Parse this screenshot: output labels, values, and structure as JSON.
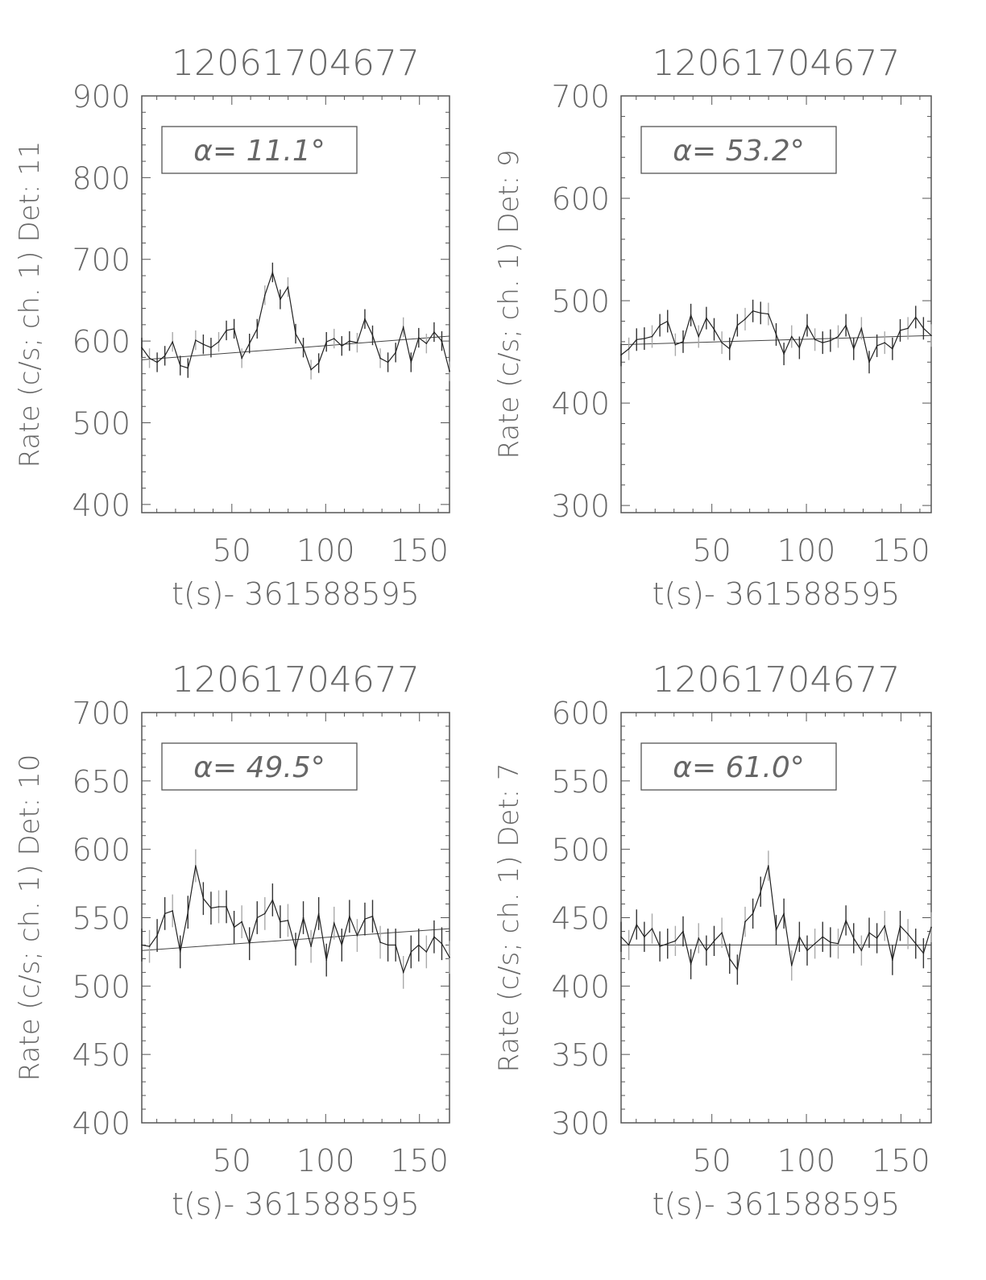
{
  "chart_data": [
    {
      "type": "line",
      "title": "12061704677",
      "xlabel": "t(s)- 361588595",
      "ylabel": "Rate (c/s; ch. 1) Det: 11",
      "annotation": "α= 11.1°",
      "xlim": [
        2,
        166
      ],
      "ylim": [
        390,
        900
      ],
      "xticks": [
        50,
        100,
        150
      ],
      "yticks": [
        400,
        500,
        600,
        700,
        800,
        900
      ],
      "x_start": 2,
      "x_step": 4.1,
      "values": [
        592,
        579,
        574,
        582,
        599,
        570,
        567,
        601,
        596,
        592,
        599,
        613,
        615,
        579,
        597,
        615,
        656,
        684,
        651,
        666,
        609,
        592,
        565,
        573,
        599,
        603,
        594,
        600,
        598,
        627,
        607,
        579,
        574,
        586,
        617,
        574,
        604,
        597,
        611,
        600,
        563
      ],
      "error": 12,
      "fit": [
        577,
        606
      ]
    },
    {
      "type": "line",
      "title": "12061704677",
      "xlabel": "t(s)- 361588595",
      "ylabel": "Rate (c/s; ch. 1) Det: 9",
      "annotation": "α= 53.2°",
      "xlim": [
        2,
        166
      ],
      "ylim": [
        293,
        700
      ],
      "xticks": [
        50,
        100,
        150
      ],
      "yticks": [
        300,
        400,
        500,
        600,
        700
      ],
      "x_start": 2,
      "x_step": 4.1,
      "values": [
        447,
        453,
        462,
        463,
        465,
        476,
        480,
        457,
        460,
        486,
        465,
        483,
        472,
        459,
        453,
        476,
        482,
        490,
        488,
        487,
        467,
        448,
        465,
        454,
        476,
        462,
        459,
        461,
        465,
        476,
        453,
        473,
        440,
        456,
        459,
        453,
        471,
        473,
        484,
        473,
        466
      ],
      "error": 11,
      "fit": [
        457,
        466
      ]
    },
    {
      "type": "line",
      "title": "12061704677",
      "xlabel": "t(s)- 361588595",
      "ylabel": "Rate (c/s; ch. 1) Det: 10",
      "annotation": "α= 49.5°",
      "xlim": [
        2,
        166
      ],
      "ylim": [
        400,
        700
      ],
      "xticks": [
        50,
        100,
        150
      ],
      "yticks": [
        400,
        450,
        500,
        550,
        600,
        650,
        700
      ],
      "x_start": 2,
      "x_step": 4.1,
      "values": [
        530,
        529,
        537,
        553,
        555,
        525,
        554,
        588,
        564,
        557,
        558,
        558,
        543,
        547,
        531,
        550,
        553,
        563,
        547,
        548,
        527,
        550,
        529,
        553,
        519,
        546,
        530,
        551,
        537,
        549,
        551,
        532,
        530,
        530,
        510,
        525,
        530,
        525,
        536,
        531,
        521
      ],
      "error": 12,
      "fit": [
        526,
        542
      ]
    },
    {
      "type": "line",
      "title": "12061704677",
      "xlabel": "t(s)- 361588595",
      "ylabel": "Rate (c/s; ch. 1) Det: 7",
      "annotation": "α= 61.0°",
      "xlim": [
        2,
        166
      ],
      "ylim": [
        300,
        600
      ],
      "xticks": [
        50,
        100,
        150
      ],
      "yticks": [
        300,
        350,
        400,
        450,
        500,
        550,
        600
      ],
      "x_start": 2,
      "x_step": 4.1,
      "values": [
        436,
        430,
        445,
        436,
        442,
        429,
        431,
        433,
        440,
        416,
        435,
        426,
        433,
        439,
        420,
        412,
        447,
        453,
        469,
        488,
        441,
        453,
        415,
        436,
        426,
        431,
        436,
        432,
        431,
        448,
        435,
        426,
        439,
        435,
        444,
        419,
        444,
        438,
        431,
        424,
        443
      ],
      "error": 11,
      "fit": [
        430,
        430
      ]
    }
  ]
}
